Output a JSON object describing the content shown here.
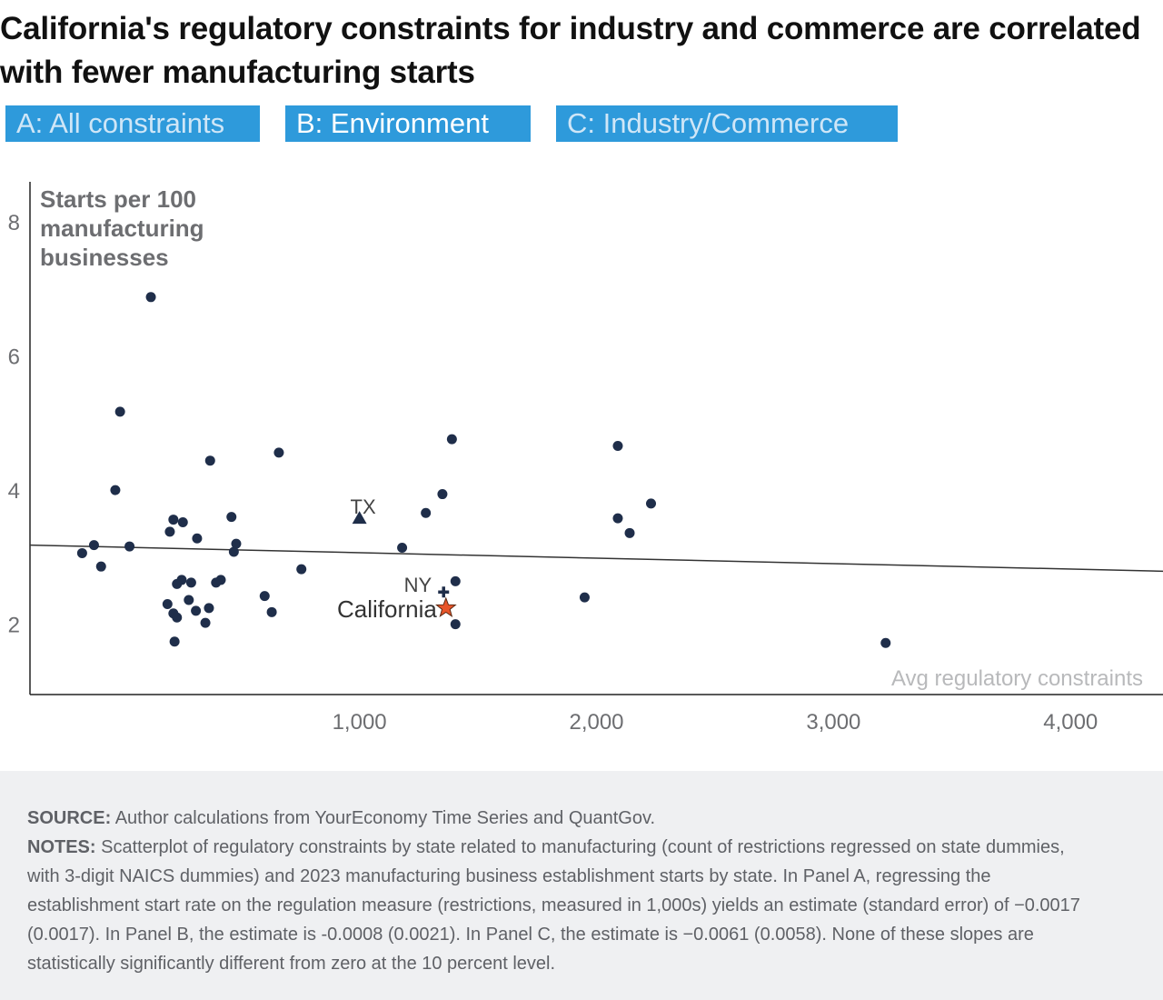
{
  "title": "California's regulatory constraints for industry and commerce are correlated with fewer manufacturing starts",
  "tabs": [
    {
      "label": "A: All constraints",
      "active": false
    },
    {
      "label": "B: Environment",
      "active": true
    },
    {
      "label": "C: Industry/Commerce",
      "active": false
    }
  ],
  "colors": {
    "tab_bg": "#2e9adb",
    "point": "#1f2e4a",
    "california_star": "#e8552a",
    "footer_bg": "#eff0f2"
  },
  "chart_data": {
    "type": "scatter",
    "title": "",
    "ylabel": "Starts per 100 manufacturing businesses",
    "ylabel_lines": [
      "Starts per 100",
      "manufacturing",
      "businesses"
    ],
    "xlabel": "Avg regulatory constraints",
    "xlim": [
      -390,
      4390
    ],
    "ylim": [
      0.95,
      8.6
    ],
    "x_ticks": [
      {
        "value": 1000,
        "label": "1,000"
      },
      {
        "value": 2000,
        "label": "2,000"
      },
      {
        "value": 3000,
        "label": "3,000"
      },
      {
        "value": 4000,
        "label": "4,000"
      }
    ],
    "y_ticks": [
      {
        "value": 2,
        "label": "2"
      },
      {
        "value": 4,
        "label": "4"
      },
      {
        "value": 6,
        "label": "6"
      },
      {
        "value": 8,
        "label": "8"
      }
    ],
    "trend_line": {
      "x": [
        -390,
        4390
      ],
      "y": [
        3.18,
        2.79
      ]
    },
    "points": [
      {
        "x": -170,
        "y": 3.06
      },
      {
        "x": -120,
        "y": 3.18
      },
      {
        "x": -90,
        "y": 2.86
      },
      {
        "x": -30,
        "y": 4.0
      },
      {
        "x": -10,
        "y": 5.17
      },
      {
        "x": 30,
        "y": 3.16
      },
      {
        "x": 120,
        "y": 6.88
      },
      {
        "x": 190,
        "y": 2.3
      },
      {
        "x": 200,
        "y": 3.38
      },
      {
        "x": 215,
        "y": 3.56
      },
      {
        "x": 215,
        "y": 2.16
      },
      {
        "x": 220,
        "y": 1.74
      },
      {
        "x": 230,
        "y": 2.1
      },
      {
        "x": 230,
        "y": 2.6
      },
      {
        "x": 250,
        "y": 2.66
      },
      {
        "x": 255,
        "y": 3.52
      },
      {
        "x": 280,
        "y": 2.36
      },
      {
        "x": 290,
        "y": 2.62
      },
      {
        "x": 310,
        "y": 2.2
      },
      {
        "x": 315,
        "y": 3.28
      },
      {
        "x": 350,
        "y": 2.02
      },
      {
        "x": 365,
        "y": 2.24
      },
      {
        "x": 370,
        "y": 4.44
      },
      {
        "x": 395,
        "y": 2.62
      },
      {
        "x": 415,
        "y": 2.66
      },
      {
        "x": 460,
        "y": 3.6
      },
      {
        "x": 470,
        "y": 3.08
      },
      {
        "x": 480,
        "y": 3.2
      },
      {
        "x": 600,
        "y": 2.42
      },
      {
        "x": 630,
        "y": 2.18
      },
      {
        "x": 660,
        "y": 4.56
      },
      {
        "x": 755,
        "y": 2.82
      },
      {
        "x": 1180,
        "y": 3.14
      },
      {
        "x": 1280,
        "y": 3.66
      },
      {
        "x": 1350,
        "y": 3.94
      },
      {
        "x": 1390,
        "y": 4.76
      },
      {
        "x": 1405,
        "y": 2.64
      },
      {
        "x": 1405,
        "y": 2.0
      },
      {
        "x": 1950,
        "y": 2.4
      },
      {
        "x": 2090,
        "y": 4.66
      },
      {
        "x": 2090,
        "y": 3.58
      },
      {
        "x": 2140,
        "y": 3.36
      },
      {
        "x": 2230,
        "y": 3.8
      },
      {
        "x": 3220,
        "y": 1.72
      }
    ],
    "highlighted": [
      {
        "label": "TX",
        "x": 1000,
        "y": 3.58,
        "marker": "triangle"
      },
      {
        "label": "NY",
        "x": 1355,
        "y": 2.48,
        "marker": "plus"
      },
      {
        "label": "California",
        "x": 1365,
        "y": 2.24,
        "marker": "star"
      }
    ]
  },
  "footer": {
    "source_label": "SOURCE:",
    "source_text": " Author calculations from YourEconomy Time Series and QuantGov.",
    "notes_label": "NOTES:",
    "notes_text": " Scatterplot of regulatory constraints by state related to manufacturing (count of restrictions regressed on state dummies, with 3-digit NAICS dummies) and 2023 manufacturing business establishment starts by state. In Panel A, regressing the establishment start rate on the regulation measure (restrictions, measured in 1,000s) yields an estimate (standard error) of −0.0017 (0.0017). In Panel B, the estimate is -0.0008 (0.0021). In Panel C, the estimate is −0.0061 (0.0058). None of these slopes are statistically significantly different from zero at the 10 percent level."
  }
}
